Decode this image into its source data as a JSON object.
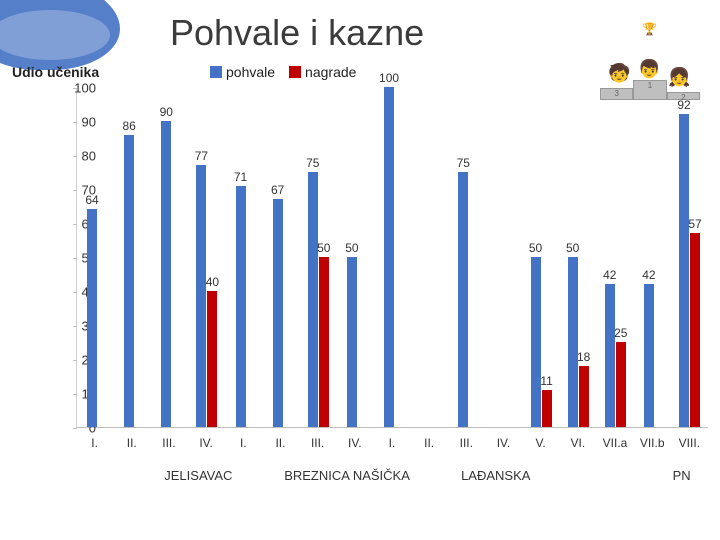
{
  "title": "Pohvale i kazne",
  "y_axis_label": "Udio učenika",
  "legend": {
    "series": [
      {
        "label": "pohvale",
        "color": "#4472c4"
      },
      {
        "label": "nagrade",
        "color": "#c00000"
      }
    ]
  },
  "chart": {
    "type": "bar",
    "ylim": [
      0,
      100
    ],
    "ytick_step": 10,
    "colors": {
      "pohvale": "#4472c4",
      "nagrade": "#c00000"
    },
    "groups": [
      {
        "name": "JELISAVAC",
        "count": 4
      },
      {
        "name": "BREZNICA NAŠIČKA",
        "count": 4
      },
      {
        "name": "LAĐANSKA",
        "count": 4
      },
      {
        "name": "",
        "count": 1
      },
      {
        "name": "PN",
        "count": 4
      }
    ],
    "categories": [
      "I.",
      "II.",
      "III.",
      "IV.",
      "I.",
      "II.",
      "III.",
      "IV.",
      "I.",
      "II.",
      "III.",
      "IV.",
      "V.",
      "VI.",
      "VII.a",
      "VII.b",
      "VIII."
    ],
    "data": [
      {
        "pohvale": 64,
        "nagrade": null
      },
      {
        "pohvale": 86,
        "nagrade": null
      },
      {
        "pohvale": 90,
        "nagrade": null
      },
      {
        "pohvale": 77,
        "nagrade": 40
      },
      {
        "pohvale": 71,
        "nagrade": null
      },
      {
        "pohvale": 67,
        "nagrade": null
      },
      {
        "pohvale": 75,
        "nagrade": 50
      },
      {
        "pohvale": 50,
        "nagrade": null
      },
      {
        "pohvale": 100,
        "nagrade": null
      },
      {
        "pohvale": null,
        "nagrade": null
      },
      {
        "pohvale": 75,
        "nagrade": null
      },
      {
        "pohvale": null,
        "nagrade": null
      },
      {
        "pohvale": 50,
        "nagrade": 11
      },
      {
        "pohvale": 50,
        "nagrade": 18
      },
      {
        "pohvale": 42,
        "nagrade": 25
      },
      {
        "pohvale": 42,
        "nagrade": null
      },
      {
        "pohvale": 92,
        "nagrade": 57,
        "nagrade_label": "5​7"
      }
    ]
  }
}
